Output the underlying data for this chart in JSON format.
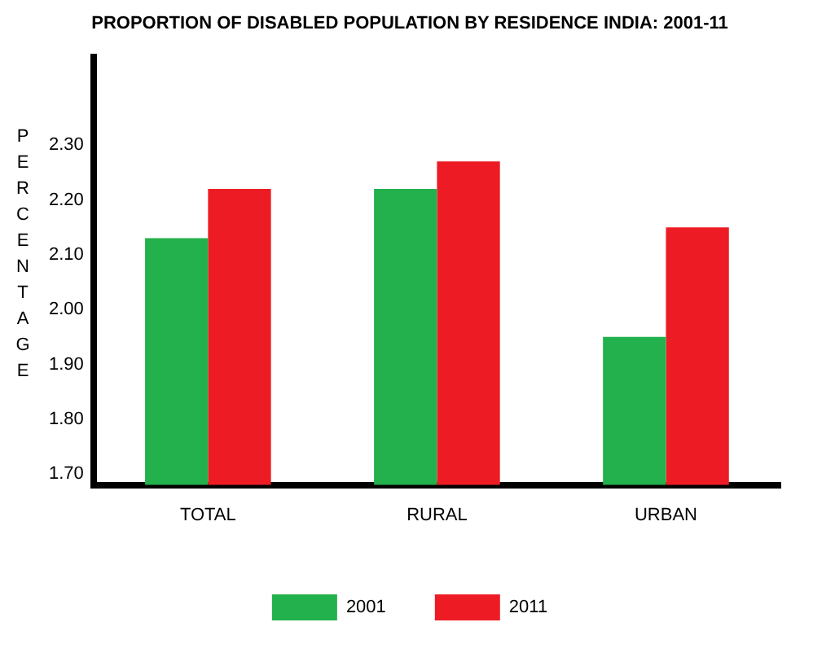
{
  "chart_data": {
    "type": "bar",
    "title": "PROPORTION OF DISABLED POPULATION BY RESIDENCE INDIA: 2001-11",
    "ylabel": "PERCENTAGE",
    "categories": [
      "TOTAL",
      "RURAL",
      "URBAN"
    ],
    "series": [
      {
        "name": "2001",
        "color": "#22b14c",
        "values": [
          2.13,
          2.22,
          1.95
        ]
      },
      {
        "name": "2011",
        "color": "#ed1c24",
        "values": [
          2.22,
          2.27,
          2.15
        ]
      }
    ],
    "ylim": [
      1.68,
      2.46
    ],
    "yticks": [
      {
        "value": 1.7,
        "label": "1.70"
      },
      {
        "value": 1.8,
        "label": "1.80"
      },
      {
        "value": 1.9,
        "label": "1.90"
      },
      {
        "value": 2.0,
        "label": "2.00"
      },
      {
        "value": 2.1,
        "label": "2.10"
      },
      {
        "value": 2.2,
        "label": "2.20"
      },
      {
        "value": 2.3,
        "label": "2.30"
      }
    ],
    "grid": false,
    "legend": "bottom"
  }
}
